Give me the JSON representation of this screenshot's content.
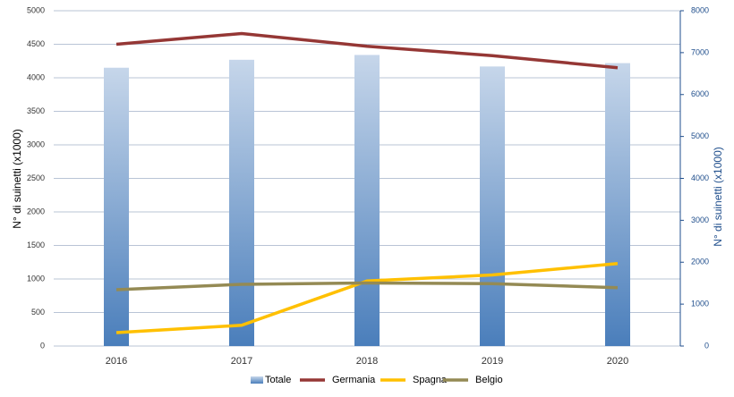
{
  "chart_data": {
    "type": "bar-line",
    "y_label": "N° di suinetti (x1000)",
    "y2_label": "N° di suinetti (x1000)",
    "categories": [
      "2016",
      "2017",
      "2018",
      "2019",
      "2020"
    ],
    "series": [
      {
        "name": "Totale",
        "type": "bar",
        "axis": "y2",
        "color": "#4f81bd",
        "values": [
          6640,
          6830,
          6945,
          6670,
          6750
        ]
      },
      {
        "name": "Germania",
        "type": "line",
        "color": "#953735",
        "values": [
          4500,
          4660,
          4470,
          4330,
          4150
        ]
      },
      {
        "name": "Spagna",
        "type": "line",
        "color": "#ffc000",
        "values": [
          200,
          310,
          970,
          1060,
          1230
        ]
      },
      {
        "name": "Belgio",
        "type": "line",
        "color": "#948a54",
        "values": [
          840,
          920,
          940,
          930,
          870
        ]
      }
    ],
    "ylim": [
      0,
      5000
    ],
    "yticks": [
      0,
      500,
      1000,
      1500,
      2000,
      2500,
      3000,
      3500,
      4000,
      4500,
      5000
    ],
    "y2lim": [
      0,
      8000
    ],
    "y2ticks": [
      0,
      1000,
      2000,
      3000,
      4000,
      5000,
      6000,
      7000,
      8000
    ],
    "grid": true,
    "legend": "bottom"
  }
}
